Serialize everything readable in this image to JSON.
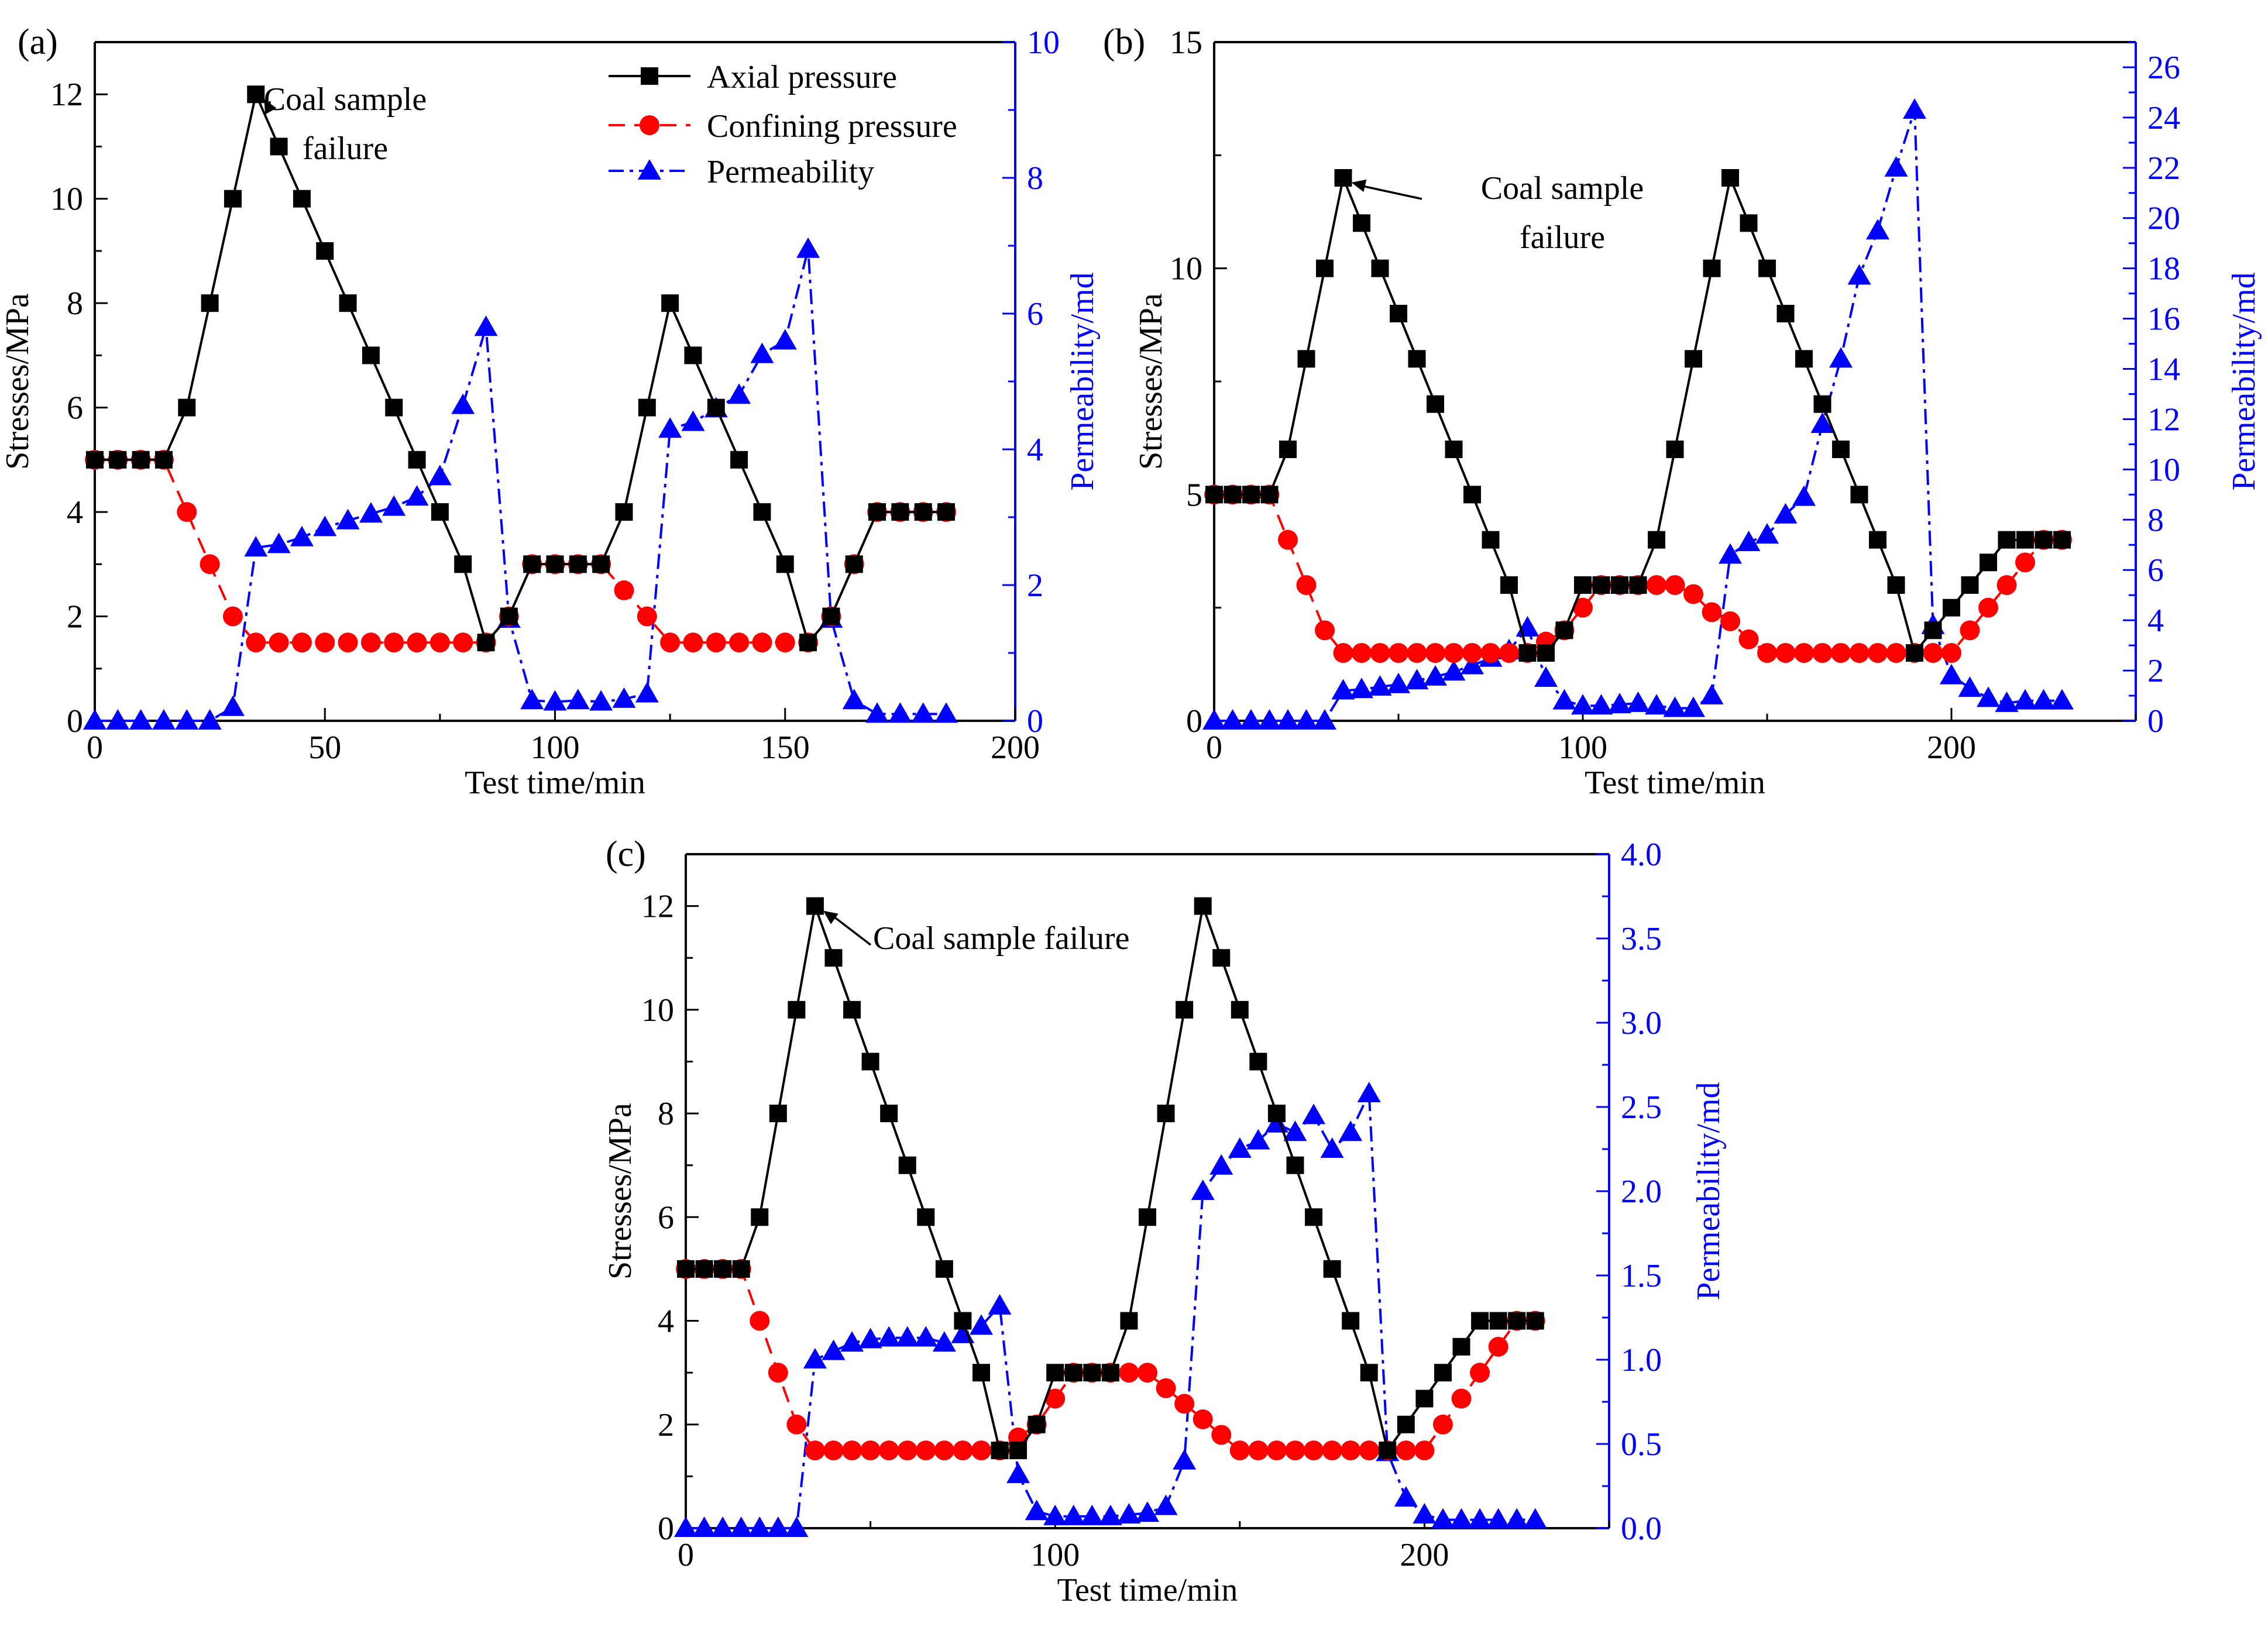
{
  "figure": {
    "colors": {
      "axial": "#000000",
      "confining": "#ff0000",
      "permeability": "#0000ff",
      "frame": "#000000"
    },
    "legend": {
      "axial": "Axial pressure",
      "confining": "Confining pressure",
      "permeability": "Permeability"
    }
  },
  "chart_data": [
    {
      "type": "line",
      "panel_label": "(a)",
      "xlabel": "Test time/min",
      "ylabel": "Stresses/MPa",
      "y2label": "Permeability/md",
      "xlim": [
        0,
        200
      ],
      "xticks": [
        0,
        50,
        100,
        150,
        200
      ],
      "ylim": [
        0,
        13
      ],
      "yticks": [
        0,
        2,
        4,
        6,
        8,
        10,
        12
      ],
      "y2lim": [
        0,
        10
      ],
      "y2ticks": [
        0,
        2,
        4,
        6,
        8,
        10
      ],
      "annotation": {
        "lines": [
          "Coal sample",
          "failure"
        ],
        "points_to": [
          35,
          12
        ]
      },
      "legend_position": "top-right",
      "series": [
        {
          "name": "Axial pressure",
          "axis": "left",
          "style": "solid-square",
          "x": [
            0,
            5,
            10,
            15,
            20,
            25,
            30,
            35,
            40,
            45,
            50,
            55,
            60,
            65,
            70,
            75,
            80,
            85,
            90,
            95,
            100,
            105,
            110,
            115,
            120,
            125,
            130,
            135,
            140,
            145,
            150,
            155,
            160,
            165,
            170,
            175,
            180,
            185
          ],
          "y": [
            5,
            5,
            5,
            5,
            6,
            8,
            10,
            12,
            11,
            10,
            9,
            8,
            7,
            6,
            5,
            4,
            3,
            1.5,
            2,
            3,
            3,
            3,
            3,
            4,
            6,
            8,
            7,
            6,
            5,
            4,
            3,
            1.5,
            2,
            3,
            4,
            4,
            4,
            4
          ]
        },
        {
          "name": "Confining pressure",
          "axis": "left",
          "style": "dashed-circle",
          "x": [
            0,
            5,
            10,
            15,
            20,
            25,
            30,
            35,
            40,
            45,
            50,
            55,
            60,
            65,
            70,
            75,
            80,
            85,
            90,
            95,
            100,
            105,
            110,
            115,
            120,
            125,
            130,
            135,
            140,
            145,
            150,
            155,
            160,
            165,
            170,
            175,
            180,
            185
          ],
          "y": [
            5,
            5,
            5,
            5,
            4,
            3,
            2,
            1.5,
            1.5,
            1.5,
            1.5,
            1.5,
            1.5,
            1.5,
            1.5,
            1.5,
            1.5,
            1.5,
            2,
            3,
            3,
            3,
            3,
            2.5,
            2,
            1.5,
            1.5,
            1.5,
            1.5,
            1.5,
            1.5,
            1.5,
            2,
            3,
            4,
            4,
            4,
            4
          ]
        },
        {
          "name": "Permeability",
          "axis": "right",
          "style": "dashdot-triangle",
          "x": [
            0,
            5,
            10,
            15,
            20,
            25,
            30,
            35,
            40,
            45,
            50,
            55,
            60,
            65,
            70,
            75,
            80,
            85,
            90,
            95,
            100,
            105,
            110,
            115,
            120,
            125,
            130,
            135,
            140,
            145,
            150,
            155,
            160,
            165,
            170,
            175,
            180,
            185
          ],
          "y": [
            0,
            0,
            0,
            0,
            0,
            0,
            0.2,
            2.55,
            2.6,
            2.7,
            2.85,
            2.95,
            3.05,
            3.15,
            3.3,
            3.6,
            4.65,
            5.8,
            1.5,
            0.3,
            0.28,
            0.3,
            0.28,
            0.32,
            0.4,
            4.3,
            4.4,
            4.6,
            4.8,
            5.4,
            5.6,
            6.95,
            1.5,
            0.3,
            0.1,
            0.1,
            0.1,
            0.1
          ]
        }
      ]
    },
    {
      "type": "line",
      "panel_label": "(b)",
      "xlabel": "Test time/min",
      "ylabel": "Stresses/MPa",
      "y2label": "Permeability/md",
      "xlim": [
        0,
        250
      ],
      "xticks": [
        0,
        100,
        200
      ],
      "ylim": [
        0,
        15
      ],
      "yticks": [
        0,
        5,
        10,
        15
      ],
      "y2lim": [
        0,
        27
      ],
      "y2ticks": [
        0,
        2,
        4,
        6,
        8,
        10,
        12,
        14,
        16,
        18,
        20,
        22,
        24,
        26
      ],
      "annotation": {
        "lines": [
          "Coal sample",
          "failure"
        ],
        "points_to": [
          35,
          12
        ]
      },
      "series": [
        {
          "name": "Axial pressure",
          "axis": "left",
          "style": "solid-square",
          "x": [
            0,
            5,
            10,
            15,
            20,
            25,
            30,
            35,
            40,
            45,
            50,
            55,
            60,
            65,
            70,
            75,
            80,
            85,
            90,
            95,
            100,
            105,
            110,
            115,
            120,
            125,
            130,
            135,
            140,
            145,
            150,
            155,
            160,
            165,
            170,
            175,
            180,
            185,
            190,
            195,
            200,
            205,
            210,
            215,
            220,
            225,
            230
          ],
          "y": [
            5,
            5,
            5,
            5,
            6,
            8,
            10,
            12,
            11,
            10,
            9,
            8,
            7,
            6,
            5,
            4,
            3,
            1.5,
            1.5,
            2,
            3,
            3,
            3,
            3,
            4,
            6,
            8,
            10,
            12,
            11,
            10,
            9,
            8,
            7,
            6,
            5,
            4,
            3,
            1.5,
            2,
            2.5,
            3,
            3.5,
            4,
            4,
            4,
            4
          ]
        },
        {
          "name": "Confining pressure",
          "axis": "left",
          "style": "dashed-circle",
          "x": [
            0,
            5,
            10,
            15,
            20,
            25,
            30,
            35,
            40,
            45,
            50,
            55,
            60,
            65,
            70,
            75,
            80,
            85,
            90,
            95,
            100,
            105,
            110,
            115,
            120,
            125,
            130,
            135,
            140,
            145,
            150,
            155,
            160,
            165,
            170,
            175,
            180,
            185,
            190,
            195,
            200,
            205,
            210,
            215,
            220,
            225,
            230
          ],
          "y": [
            5,
            5,
            5,
            5,
            4,
            3,
            2,
            1.5,
            1.5,
            1.5,
            1.5,
            1.5,
            1.5,
            1.5,
            1.5,
            1.5,
            1.5,
            1.5,
            1.75,
            2,
            2.5,
            3,
            3,
            3,
            3,
            3,
            2.8,
            2.4,
            2.2,
            1.8,
            1.5,
            1.5,
            1.5,
            1.5,
            1.5,
            1.5,
            1.5,
            1.5,
            1.5,
            1.5,
            1.5,
            2,
            2.5,
            3,
            3.5,
            4,
            4
          ]
        },
        {
          "name": "Permeability",
          "axis": "right",
          "style": "dashdot-triangle",
          "x": [
            0,
            5,
            10,
            15,
            20,
            25,
            30,
            35,
            40,
            45,
            50,
            55,
            60,
            65,
            70,
            75,
            80,
            85,
            90,
            95,
            100,
            105,
            110,
            115,
            120,
            125,
            130,
            135,
            140,
            145,
            150,
            155,
            160,
            165,
            170,
            175,
            180,
            185,
            190,
            195,
            200,
            205,
            210,
            215,
            220,
            225,
            230
          ],
          "y": [
            0,
            0,
            0,
            0,
            0,
            0,
            0,
            1.2,
            1.25,
            1.35,
            1.45,
            1.6,
            1.75,
            1.95,
            2.2,
            2.5,
            2.8,
            3.7,
            1.7,
            0.8,
            0.6,
            0.6,
            0.65,
            0.7,
            0.6,
            0.5,
            0.5,
            1,
            6.6,
            7.1,
            7.4,
            8.2,
            8.9,
            11.8,
            14.4,
            17.7,
            19.5,
            22,
            24.3,
            3.8,
            1.8,
            1.3,
            0.9,
            0.7,
            0.8,
            0.8,
            0.8
          ]
        }
      ]
    },
    {
      "type": "line",
      "panel_label": "(c)",
      "xlabel": "Test time/min",
      "ylabel": "Stresses/MPa",
      "y2label": "Permeability/md",
      "xlim": [
        0,
        250
      ],
      "xticks": [
        0,
        100,
        200
      ],
      "ylim": [
        0,
        13
      ],
      "yticks": [
        0,
        2,
        4,
        6,
        8,
        10,
        12
      ],
      "y2lim": [
        0,
        4
      ],
      "y2ticks": [
        "0.0",
        "0.5",
        "1.0",
        "1.5",
        "2.0",
        "2.5",
        "3.0",
        "3.5",
        "4.0"
      ],
      "annotation": {
        "lines": [
          "Coal sample failure"
        ],
        "points_to": [
          35,
          12
        ]
      },
      "series": [
        {
          "name": "Axial pressure",
          "axis": "left",
          "style": "solid-square",
          "x": [
            0,
            5,
            10,
            15,
            20,
            25,
            30,
            35,
            40,
            45,
            50,
            55,
            60,
            65,
            70,
            75,
            80,
            85,
            90,
            95,
            100,
            105,
            110,
            115,
            120,
            125,
            130,
            135,
            140,
            145,
            150,
            155,
            160,
            165,
            170,
            175,
            180,
            185,
            190,
            195,
            200,
            205,
            210,
            215,
            220,
            225,
            230
          ],
          "y": [
            5,
            5,
            5,
            5,
            6,
            8,
            10,
            12,
            11,
            10,
            9,
            8,
            7,
            6,
            5,
            4,
            3,
            1.5,
            1.5,
            2,
            3,
            3,
            3,
            3,
            4,
            6,
            8,
            10,
            12,
            11,
            10,
            9,
            8,
            7,
            6,
            5,
            4,
            3,
            1.5,
            2,
            2.5,
            3,
            3.5,
            4,
            4,
            4,
            4
          ]
        },
        {
          "name": "Confining pressure",
          "axis": "left",
          "style": "dashed-circle",
          "x": [
            0,
            5,
            10,
            15,
            20,
            25,
            30,
            35,
            40,
            45,
            50,
            55,
            60,
            65,
            70,
            75,
            80,
            85,
            90,
            95,
            100,
            105,
            110,
            115,
            120,
            125,
            130,
            135,
            140,
            145,
            150,
            155,
            160,
            165,
            170,
            175,
            180,
            185,
            190,
            195,
            200,
            205,
            210,
            215,
            220,
            225,
            230
          ],
          "y": [
            5,
            5,
            5,
            5,
            4,
            3,
            2,
            1.5,
            1.5,
            1.5,
            1.5,
            1.5,
            1.5,
            1.5,
            1.5,
            1.5,
            1.5,
            1.5,
            1.75,
            2,
            2.5,
            3,
            3,
            3,
            3,
            3,
            2.7,
            2.4,
            2.1,
            1.8,
            1.5,
            1.5,
            1.5,
            1.5,
            1.5,
            1.5,
            1.5,
            1.5,
            1.5,
            1.5,
            1.5,
            2,
            2.5,
            3,
            3.5,
            4,
            4
          ]
        },
        {
          "name": "Permeability",
          "axis": "right",
          "style": "dashdot-triangle",
          "x": [
            0,
            5,
            10,
            15,
            20,
            25,
            30,
            35,
            40,
            45,
            50,
            55,
            60,
            65,
            70,
            75,
            80,
            85,
            90,
            95,
            100,
            105,
            110,
            115,
            120,
            125,
            130,
            135,
            140,
            145,
            150,
            155,
            160,
            165,
            170,
            175,
            180,
            185,
            190,
            195,
            200,
            205,
            210,
            215,
            220,
            225,
            230
          ],
          "y": [
            0,
            0,
            0,
            0,
            0,
            0,
            0,
            1,
            1.05,
            1.1,
            1.12,
            1.13,
            1.13,
            1.13,
            1.1,
            1.15,
            1.2,
            1.32,
            0.32,
            0.1,
            0.07,
            0.07,
            0.07,
            0.07,
            0.08,
            0.09,
            0.13,
            0.4,
            2,
            2.15,
            2.25,
            2.3,
            2.4,
            2.35,
            2.45,
            2.25,
            2.35,
            2.58,
            0.45,
            0.18,
            0.08,
            0.05,
            0.05,
            0.05,
            0.05,
            0.05,
            0.05
          ]
        }
      ]
    }
  ]
}
